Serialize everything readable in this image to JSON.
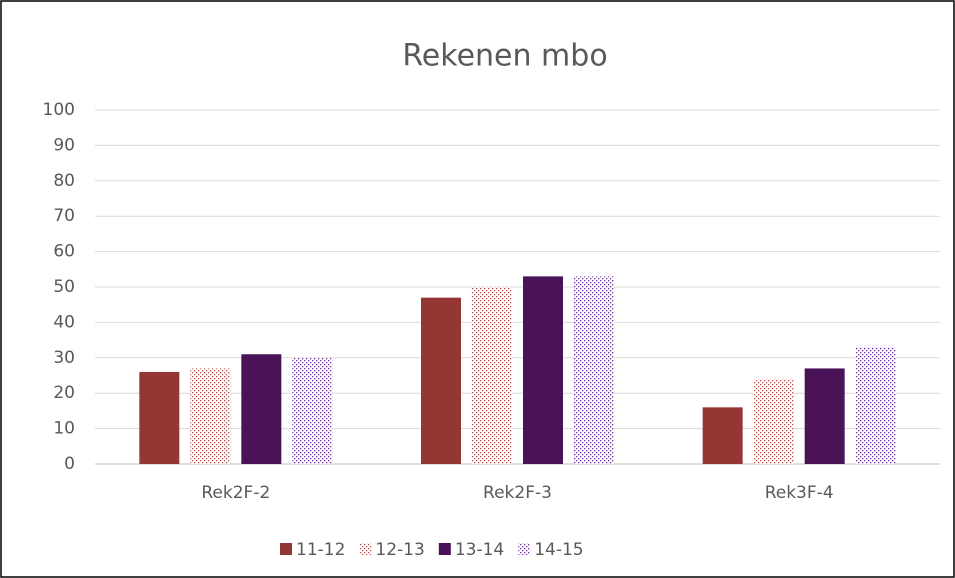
{
  "chart_data": {
    "type": "bar",
    "title": "Rekenen mbo",
    "categories": [
      "Rek2F-2",
      "Rek2F-3",
      "Rek3F-4"
    ],
    "series": [
      {
        "name": "11-12",
        "color": "#943634",
        "pattern": "solid",
        "values": [
          26,
          47,
          16
        ]
      },
      {
        "name": "12-13",
        "color": "#c0504d",
        "pattern": "dots",
        "values": [
          27,
          50,
          24
        ]
      },
      {
        "name": "13-14",
        "color": "#4a1257",
        "pattern": "solid",
        "values": [
          31,
          53,
          27
        ]
      },
      {
        "name": "14-15",
        "color": "#7030a0",
        "pattern": "dots",
        "values": [
          30,
          53,
          33
        ]
      }
    ],
    "ylim": [
      0,
      100
    ],
    "yticks": [
      0,
      10,
      20,
      30,
      40,
      50,
      60,
      70,
      80,
      90,
      100
    ],
    "grid": true,
    "legend": "bottom"
  }
}
